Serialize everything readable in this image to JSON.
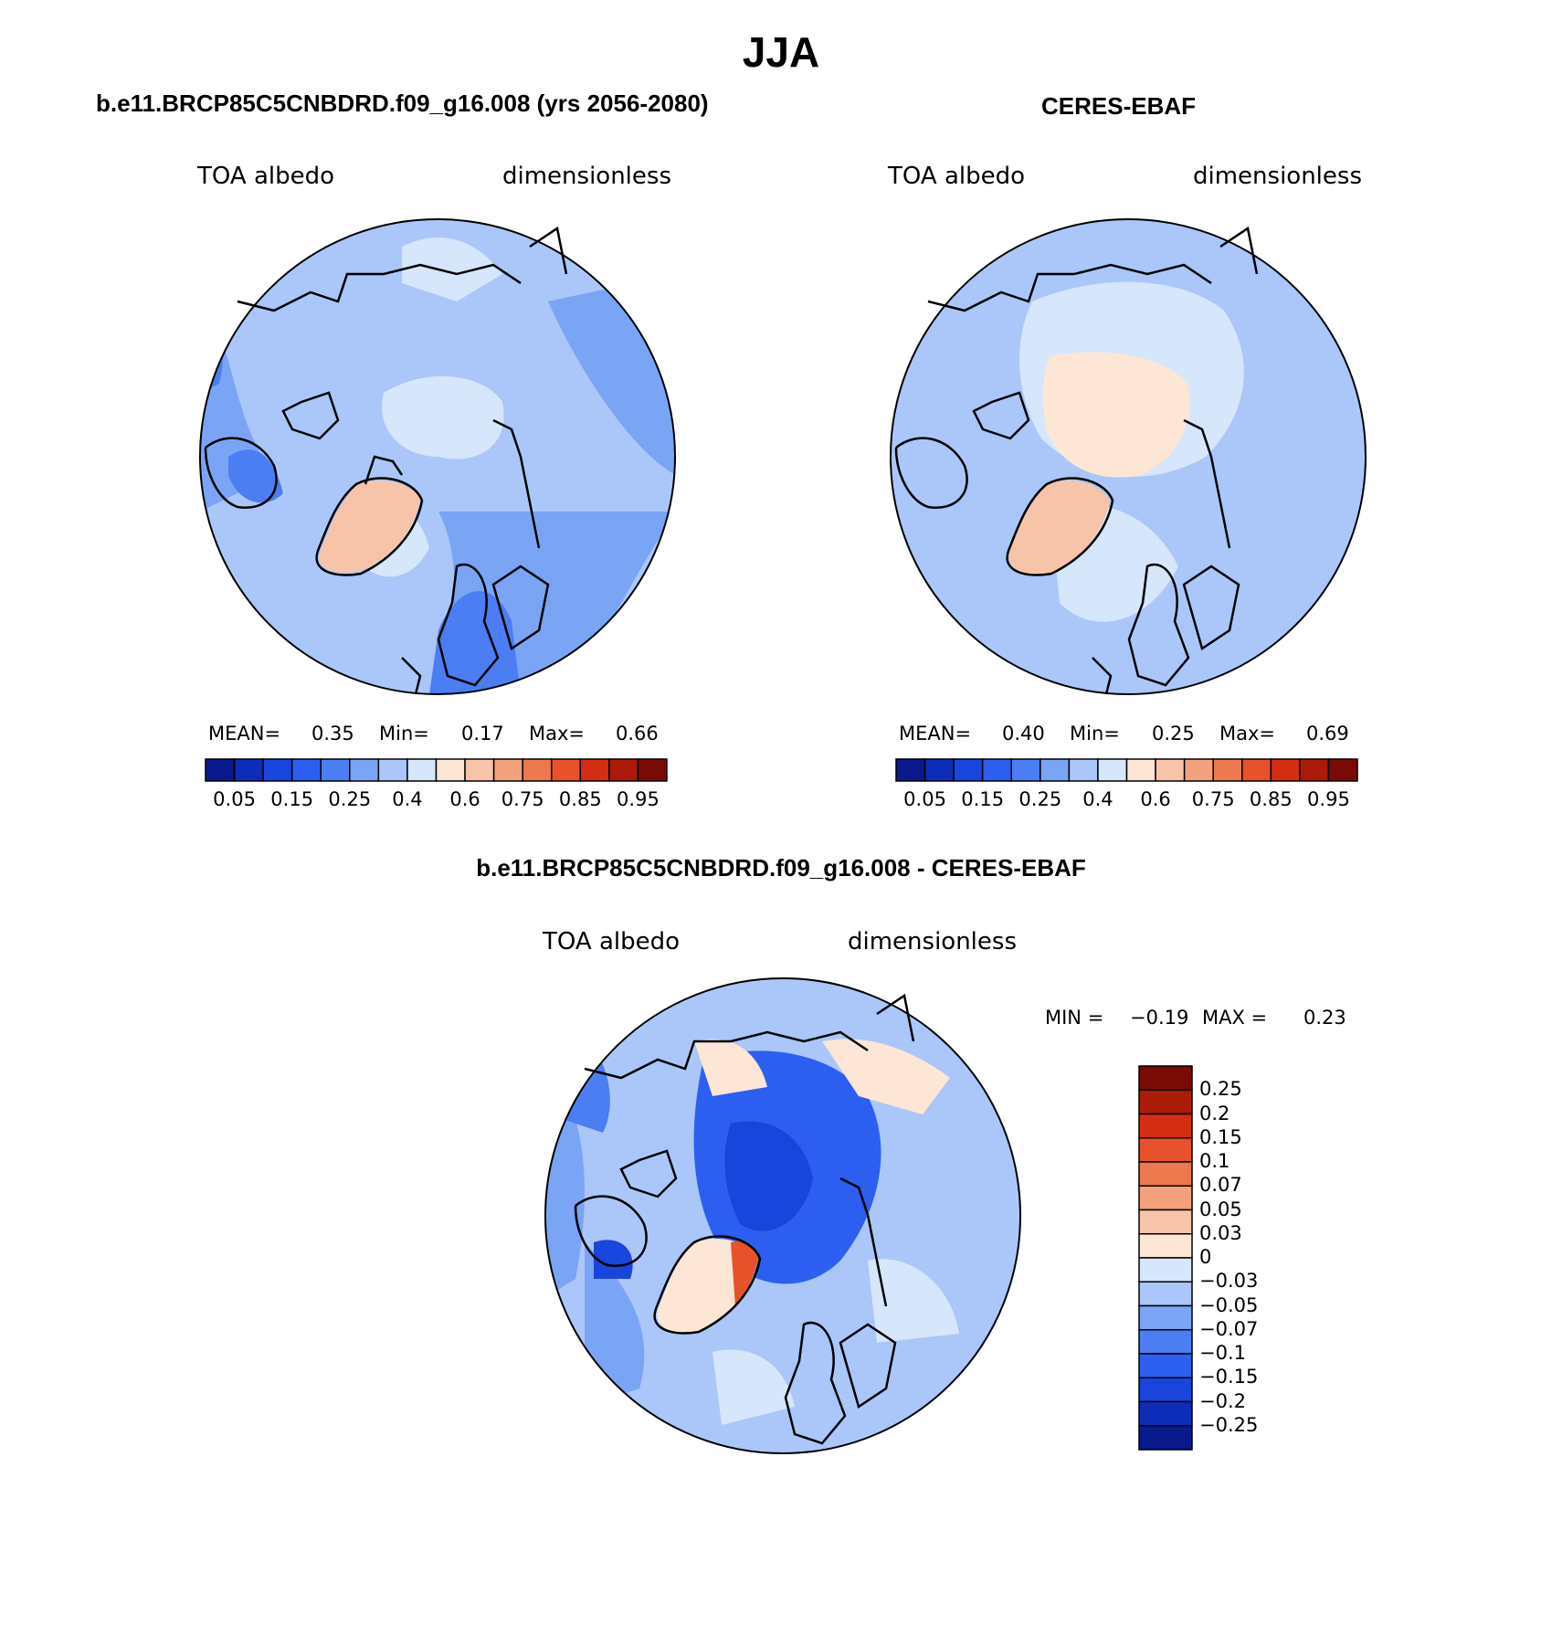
{
  "figure": {
    "title": "JJA",
    "panels": [
      {
        "title": "b.e11.BRCP85C5CNBDRD.f09_g16.008 (yrs 2056-2080)",
        "variable": "TOA albedo",
        "units": "dimensionless",
        "stats": {
          "mean_label": "MEAN=",
          "mean": "0.35",
          "min_label": "Min=",
          "min": "0.17",
          "max_label": "Max=",
          "max": "0.66"
        },
        "colorbar_ticks": [
          "0.05",
          "0.15",
          "0.25",
          "0.4",
          "0.6",
          "0.75",
          "0.85",
          "0.95"
        ]
      },
      {
        "title": "CERES-EBAF",
        "variable": "TOA albedo",
        "units": "dimensionless",
        "stats": {
          "mean_label": "MEAN=",
          "mean": "0.40",
          "min_label": "Min=",
          "min": "0.25",
          "max_label": "Max=",
          "max": "0.69"
        },
        "colorbar_ticks": [
          "0.05",
          "0.15",
          "0.25",
          "0.4",
          "0.6",
          "0.75",
          "0.85",
          "0.95"
        ]
      },
      {
        "title": "b.e11.BRCP85C5CNBDRD.f09_g16.008 - CERES-EBAF",
        "variable": "TOA albedo",
        "units": "dimensionless",
        "stats": {
          "min_label": "MIN =",
          "min": "−0.19",
          "max_label": "MAX =",
          "max": "0.23"
        },
        "colorbar_ticks": [
          "0.25",
          "0.2",
          "0.15",
          "0.1",
          "0.07",
          "0.05",
          "0.03",
          "0",
          "−0.03",
          "−0.05",
          "−0.07",
          "−0.1",
          "−0.15",
          "−0.2",
          "−0.25"
        ]
      }
    ]
  },
  "colors": {
    "abs_scale": [
      "#0a1a8c",
      "#0d2db8",
      "#1845dc",
      "#2c5ff0",
      "#4a7ef2",
      "#7aa4f4",
      "#abc6f8",
      "#d6e6fb",
      "#fde6d6",
      "#f7c4aa",
      "#f3a07c",
      "#ee784e",
      "#e8522a",
      "#d32e12",
      "#ac1a08",
      "#7a0a05"
    ],
    "diff_scale": [
      "#7a0a05",
      "#ac1a08",
      "#d32e12",
      "#e8522a",
      "#ee784e",
      "#f3a07c",
      "#f7c4aa",
      "#fde6d6",
      "#d6e6fb",
      "#abc6f8",
      "#7aa4f4",
      "#4a7ef2",
      "#2c5ff0",
      "#1845dc",
      "#0d2db8",
      "#0a1a8c"
    ]
  },
  "chart_data": [
    {
      "type": "heatmap",
      "projection": "north polar stereographic",
      "title": "b.e11.BRCP85C5CNBDRD.f09_g16.008 (yrs 2056-2080)",
      "variable": "TOA albedo",
      "units": "dimensionless",
      "mean": 0.35,
      "min": 0.17,
      "max": 0.66,
      "contour_levels": [
        0.05,
        0.1,
        0.15,
        0.2,
        0.25,
        0.3,
        0.35,
        0.4,
        0.5,
        0.6,
        0.7,
        0.75,
        0.8,
        0.85,
        0.9,
        0.95
      ]
    },
    {
      "type": "heatmap",
      "projection": "north polar stereographic",
      "title": "CERES-EBAF",
      "variable": "TOA albedo",
      "units": "dimensionless",
      "mean": 0.4,
      "min": 0.25,
      "max": 0.69,
      "contour_levels": [
        0.05,
        0.1,
        0.15,
        0.2,
        0.25,
        0.3,
        0.35,
        0.4,
        0.5,
        0.6,
        0.7,
        0.75,
        0.8,
        0.85,
        0.9,
        0.95
      ]
    },
    {
      "type": "heatmap",
      "projection": "north polar stereographic",
      "title": "b.e11.BRCP85C5CNBDRD.f09_g16.008 - CERES-EBAF",
      "variable": "TOA albedo",
      "units": "dimensionless",
      "min": -0.19,
      "max": 0.23,
      "contour_levels": [
        -0.25,
        -0.2,
        -0.15,
        -0.1,
        -0.07,
        -0.05,
        -0.03,
        0,
        0.03,
        0.05,
        0.07,
        0.1,
        0.15,
        0.2,
        0.25
      ]
    }
  ]
}
